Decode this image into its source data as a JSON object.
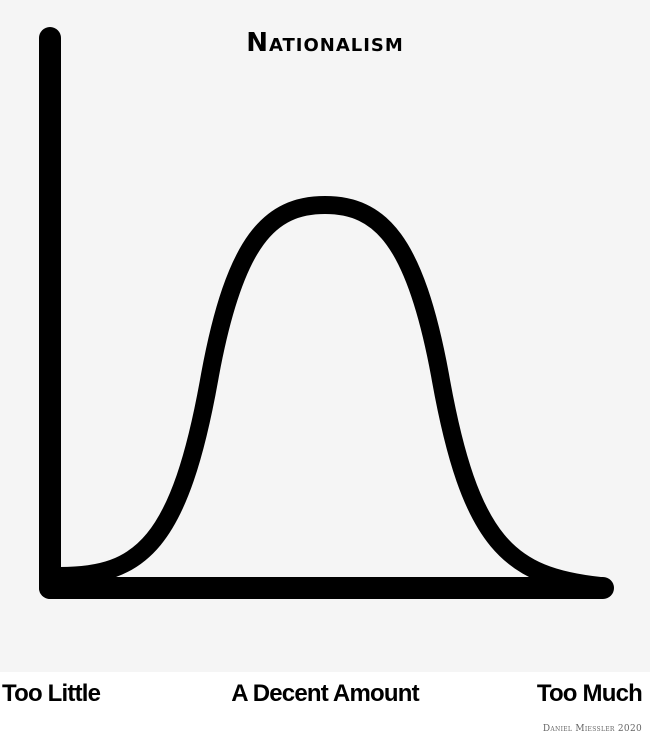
{
  "title": "Nationalism",
  "axis_labels": {
    "left": "Too Little",
    "center": "A Decent Amount",
    "right": "Too Much"
  },
  "credit": "Daniel Miessler 2020",
  "colors": {
    "background": "#f5f5f5",
    "ink": "#000000"
  }
}
